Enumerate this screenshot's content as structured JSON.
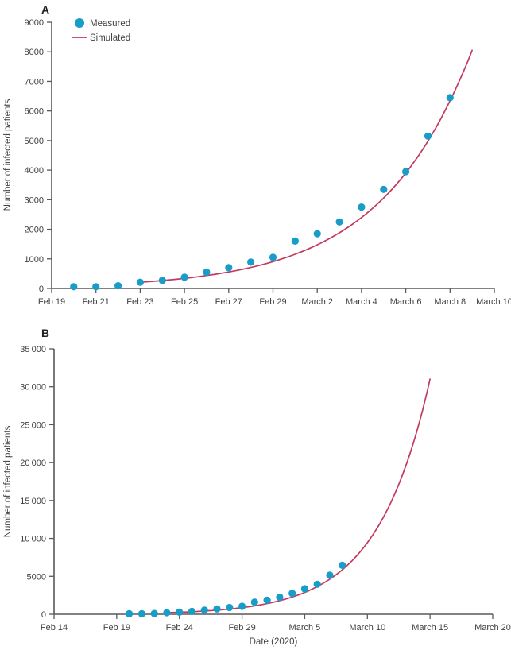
{
  "figure": {
    "background": "#ffffff",
    "colors": {
      "measured": "#189dc8",
      "simulated": "#c23a5e",
      "axis": "#58595b",
      "text": "#414042"
    }
  },
  "chart_data": [
    {
      "type": "scatter+line",
      "panel_label": "A",
      "title": "",
      "xlabel": "",
      "ylabel": "Number of infected patients",
      "x_unit": "days since Feb 14, 2020",
      "x_domain_days": [
        5,
        25
      ],
      "ylim": [
        0,
        9000
      ],
      "grid": false,
      "legend_position": "top-left-inside",
      "yticks": [
        {
          "value": 0,
          "label": "0"
        },
        {
          "value": 1000,
          "label": "1000"
        },
        {
          "value": 2000,
          "label": "2000"
        },
        {
          "value": 3000,
          "label": "3000"
        },
        {
          "value": 4000,
          "label": "4000"
        },
        {
          "value": 5000,
          "label": "5000"
        },
        {
          "value": 6000,
          "label": "6000"
        },
        {
          "value": 7000,
          "label": "7000"
        },
        {
          "value": 8000,
          "label": "8000"
        },
        {
          "value": 9000,
          "label": "9000"
        }
      ],
      "xticks": [
        {
          "day": 5,
          "label": "Feb 19"
        },
        {
          "day": 7,
          "label": "Feb 21"
        },
        {
          "day": 9,
          "label": "Feb 23"
        },
        {
          "day": 11,
          "label": "Feb 25"
        },
        {
          "day": 13,
          "label": "Feb 27"
        },
        {
          "day": 15,
          "label": "Feb 29"
        },
        {
          "day": 17,
          "label": "March 2"
        },
        {
          "day": 19,
          "label": "March 4"
        },
        {
          "day": 21,
          "label": "March 6"
        },
        {
          "day": 23,
          "label": "March 8"
        },
        {
          "day": 25,
          "label": "March 10"
        }
      ],
      "legend": [
        {
          "label": "Measured",
          "marker": "dot"
        },
        {
          "label": "Simulated",
          "marker": "line"
        }
      ],
      "series": [
        {
          "name": "Measured",
          "kind": "scatter",
          "dates": [
            "Feb 20",
            "Feb 21",
            "Feb 22",
            "Feb 23",
            "Feb 24",
            "Feb 25",
            "Feb 26",
            "Feb 27",
            "Feb 28",
            "Feb 29",
            "March 1",
            "March 2",
            "March 3",
            "March 4",
            "March 5",
            "March 6",
            "March 7",
            "March 8"
          ],
          "days": [
            6,
            7,
            8,
            9,
            10,
            11,
            12,
            13,
            14,
            15,
            16,
            17,
            18,
            19,
            20,
            21,
            22,
            23
          ],
          "values": [
            60,
            60,
            90,
            210,
            270,
            380,
            550,
            700,
            890,
            1050,
            1600,
            1850,
            2250,
            2750,
            3350,
            3950,
            5150,
            6450
          ]
        },
        {
          "name": "Simulated",
          "kind": "line",
          "dates": [
            "Feb 23",
            "Feb 24",
            "Feb 25",
            "Feb 26",
            "Feb 27",
            "Feb 28",
            "Feb 29",
            "March 1",
            "March 2",
            "March 3",
            "March 4",
            "March 5",
            "March 6",
            "March 7",
            "March 8",
            "March 9"
          ],
          "days": [
            9,
            10,
            11,
            12,
            13,
            14,
            15,
            16,
            17,
            18,
            19,
            20,
            21,
            22,
            23,
            24
          ],
          "values": [
            210,
            268,
            342,
            437,
            557,
            710,
            906,
            1156,
            1474,
            1880,
            2398,
            3059,
            3902,
            4977,
            6348,
            8050
          ]
        }
      ]
    },
    {
      "type": "scatter+line",
      "panel_label": "B",
      "title": "",
      "xlabel": "Date (2020)",
      "ylabel": "Number of infected patients",
      "x_unit": "days since Feb 14, 2020",
      "x_domain_days": [
        0,
        35
      ],
      "ylim": [
        0,
        35000
      ],
      "grid": false,
      "legend_position": "none",
      "yticks": [
        {
          "value": 0,
          "label": "0"
        },
        {
          "value": 5000,
          "label": "5000"
        },
        {
          "value": 10000,
          "label": "10 000"
        },
        {
          "value": 15000,
          "label": "15 000"
        },
        {
          "value": 20000,
          "label": "20 000"
        },
        {
          "value": 25000,
          "label": "25 000"
        },
        {
          "value": 30000,
          "label": "30 000"
        },
        {
          "value": 35000,
          "label": "35 000"
        }
      ],
      "xticks": [
        {
          "day": 0,
          "label": "Feb 14"
        },
        {
          "day": 5,
          "label": "Feb 19"
        },
        {
          "day": 10,
          "label": "Feb 24"
        },
        {
          "day": 15,
          "label": "Feb 29"
        },
        {
          "day": 20,
          "label": "March 5"
        },
        {
          "day": 25,
          "label": "March 10"
        },
        {
          "day": 30,
          "label": "March 15"
        },
        {
          "day": 35,
          "label": "March 20"
        }
      ],
      "legend": [],
      "series": [
        {
          "name": "Measured",
          "kind": "scatter",
          "dates": [
            "Feb 20",
            "Feb 21",
            "Feb 22",
            "Feb 23",
            "Feb 24",
            "Feb 25",
            "Feb 26",
            "Feb 27",
            "Feb 28",
            "Feb 29",
            "March 1",
            "March 2",
            "March 3",
            "March 4",
            "March 5",
            "March 6",
            "March 7",
            "March 8"
          ],
          "days": [
            6,
            7,
            8,
            9,
            10,
            11,
            12,
            13,
            14,
            15,
            16,
            17,
            18,
            19,
            20,
            21,
            22,
            23
          ],
          "values": [
            60,
            60,
            90,
            210,
            270,
            380,
            550,
            700,
            890,
            1050,
            1600,
            1850,
            2250,
            2750,
            3350,
            3950,
            5150,
            6450
          ]
        },
        {
          "name": "Simulated",
          "kind": "line",
          "dates": [
            "Feb 23",
            "Feb 24",
            "Feb 25",
            "Feb 26",
            "Feb 27",
            "Feb 28",
            "Feb 29",
            "March 1",
            "March 2",
            "March 3",
            "March 4",
            "March 5",
            "March 6",
            "March 7",
            "March 8",
            "March 9",
            "March 10",
            "March 11",
            "March 12",
            "March 13",
            "March 14",
            "March 15"
          ],
          "days": [
            9,
            10,
            11,
            12,
            13,
            14,
            15,
            16,
            17,
            18,
            19,
            20,
            21,
            22,
            23,
            24,
            25,
            26,
            27,
            28,
            29,
            30
          ],
          "values": [
            210,
            266,
            338,
            429,
            544,
            690,
            875,
            1110,
            1410,
            1790,
            2270,
            2870,
            3650,
            4630,
            5870,
            7440,
            9440,
            11980,
            15190,
            19270,
            24440,
            31010
          ]
        }
      ]
    }
  ]
}
